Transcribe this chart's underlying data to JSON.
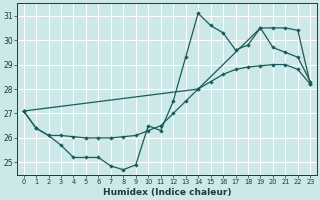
{
  "xlabel": "Humidex (Indice chaleur)",
  "bg_color": "#cce8e8",
  "grid_color": "#ffffff",
  "line_color": "#1a5c5c",
  "xlim": [
    -0.5,
    23.5
  ],
  "ylim": [
    24.5,
    31.5
  ],
  "xticks": [
    0,
    1,
    2,
    3,
    4,
    5,
    6,
    7,
    8,
    9,
    10,
    11,
    12,
    13,
    14,
    15,
    16,
    17,
    18,
    19,
    20,
    21,
    22,
    23
  ],
  "yticks": [
    25,
    26,
    27,
    28,
    29,
    30,
    31
  ],
  "line1_x": [
    0,
    1,
    2,
    3,
    4,
    5,
    6,
    7,
    8,
    9,
    10,
    11,
    12,
    13,
    14,
    15,
    16,
    17,
    18,
    19,
    20,
    21,
    22,
    23
  ],
  "line1_y": [
    27.1,
    26.4,
    26.1,
    25.7,
    25.2,
    25.2,
    25.2,
    24.85,
    24.7,
    24.9,
    26.5,
    26.3,
    27.5,
    29.3,
    31.1,
    30.6,
    30.3,
    29.6,
    29.8,
    30.5,
    29.7,
    29.5,
    29.3,
    28.3
  ],
  "line2_x": [
    0,
    1,
    2,
    3,
    4,
    5,
    6,
    7,
    8,
    9,
    10,
    11,
    12,
    13,
    14,
    19,
    20,
    21,
    22,
    23
  ],
  "line2_y": [
    27.1,
    26.4,
    26.1,
    26.1,
    26.05,
    26.0,
    26.0,
    26.0,
    26.05,
    26.1,
    26.3,
    26.5,
    27.0,
    27.5,
    28.0,
    30.5,
    30.5,
    30.5,
    30.4,
    28.2
  ],
  "line3_x": [
    0,
    14,
    15,
    16,
    17,
    18,
    19,
    20,
    21,
    22,
    23
  ],
  "line3_y": [
    27.1,
    28.0,
    28.3,
    28.6,
    28.8,
    28.9,
    28.95,
    29.0,
    29.0,
    28.8,
    28.2
  ]
}
